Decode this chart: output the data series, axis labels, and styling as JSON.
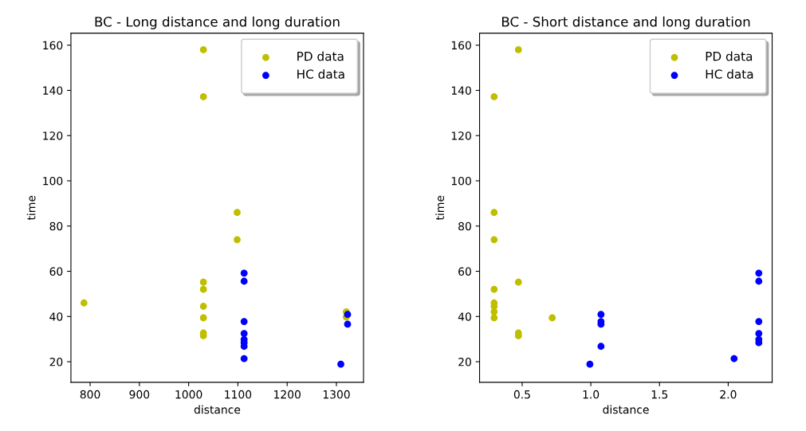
{
  "chart_data": [
    {
      "type": "scatter",
      "title": "BC - Long distance and long duration",
      "xlabel": "distance",
      "ylabel": "time",
      "xlim": [
        761,
        1355
      ],
      "xticks": [
        800,
        900,
        1000,
        1100,
        1200,
        1300
      ],
      "ylim": [
        10.9,
        165.3
      ],
      "yticks": [
        20,
        40,
        60,
        80,
        100,
        120,
        140,
        160
      ],
      "legend": "top right",
      "marker": "circle",
      "grid": false,
      "series": [
        {
          "name": "PD data",
          "color": "#bfbf00",
          "x": [
            787.5,
            1030,
            1030,
            1030,
            1030,
            1030,
            1030,
            1030,
            1030,
            1098.5,
            1098.5,
            1320,
            1320
          ],
          "values": [
            46,
            158,
            137.2,
            55.2,
            52,
            44.5,
            39.4,
            32.7,
            31.5,
            86,
            74,
            42.1,
            39.8
          ]
        },
        {
          "name": "HC data",
          "color": "#0000ff",
          "x": [
            1112.6,
            1112.6,
            1112.6,
            1112.6,
            1112.6,
            1112.6,
            1112.6,
            1112.6,
            1309,
            1322.7,
            1322.7
          ],
          "values": [
            59.2,
            55.6,
            37.8,
            32.5,
            29.8,
            28.4,
            26.8,
            21.4,
            18.9,
            40.9,
            36.6
          ]
        }
      ]
    },
    {
      "type": "scatter",
      "title": "BC - Short distance and long duration",
      "xlabel": "distance",
      "ylabel": "time",
      "xlim": [
        0.19,
        2.32
      ],
      "xticks": [
        0.5,
        {
          "value": 1,
          "label": "1.0"
        },
        1.5,
        {
          "value": 2,
          "label": "2.0"
        }
      ],
      "ylim": [
        10.9,
        165.3
      ],
      "yticks": [
        20,
        40,
        60,
        80,
        100,
        120,
        140,
        160
      ],
      "legend": "top right",
      "marker": "circle",
      "grid": false,
      "series": [
        {
          "name": "PD data",
          "color": "#bfbf00",
          "x": [
            0.296,
            0.296,
            0.296,
            0.296,
            0.296,
            0.296,
            0.296,
            0.296,
            0.473,
            0.473,
            0.473,
            0.473,
            0.719
          ],
          "values": [
            137.2,
            86,
            74,
            52,
            46,
            44.5,
            42.1,
            39.4,
            158,
            55.2,
            32.7,
            31.5,
            39.4
          ]
        },
        {
          "name": "HC data",
          "color": "#0000ff",
          "x": [
            0.993,
            1.074,
            1.074,
            1.074,
            1.074,
            2.043,
            2.223,
            2.223,
            2.223,
            2.223,
            2.223,
            2.223
          ],
          "values": [
            18.9,
            40.9,
            37.8,
            36.6,
            26.8,
            21.4,
            59.2,
            55.6,
            37.8,
            32.5,
            29.8,
            28.4
          ]
        }
      ]
    }
  ]
}
